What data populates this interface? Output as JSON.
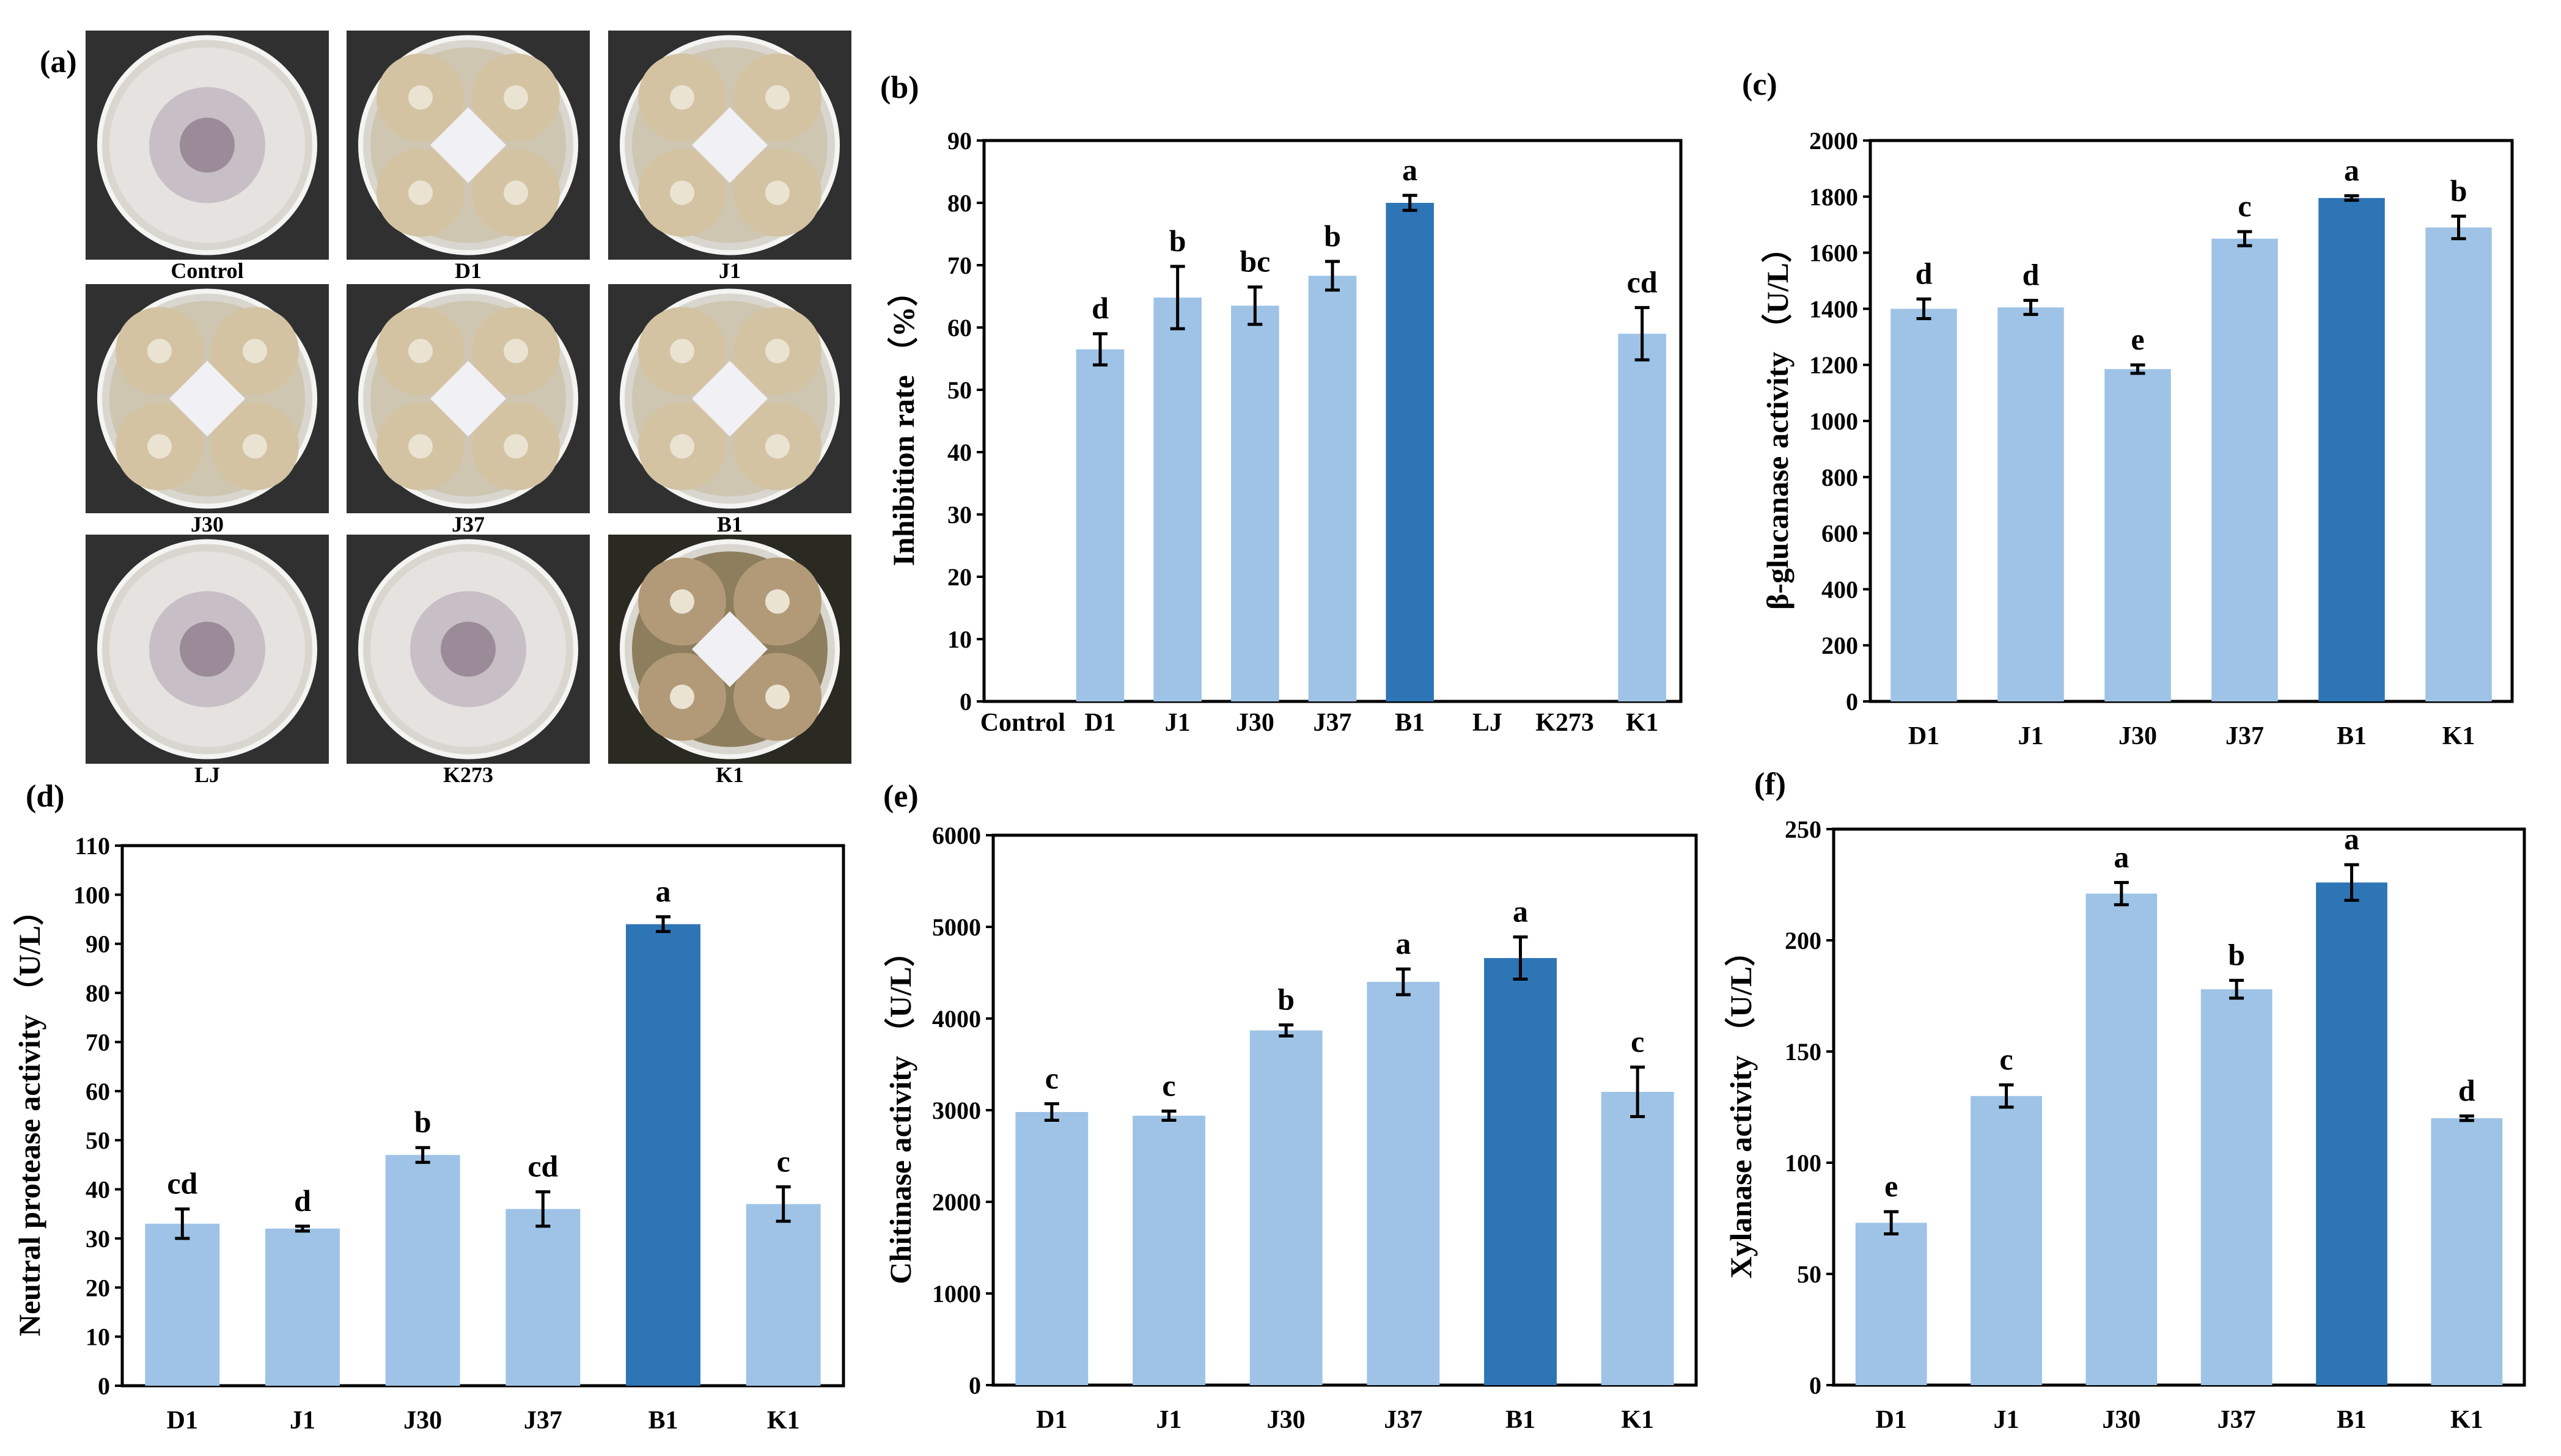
{
  "figure": {
    "colors": {
      "bar_light": "#9ec3e6",
      "bar_dark": "#2e75b6",
      "error": "#000000",
      "frame": "#000000"
    },
    "panel_a": {
      "label": "(a)",
      "plates": [
        {
          "name": "Control",
          "kind": "control"
        },
        {
          "name": "D1",
          "kind": "treated"
        },
        {
          "name": "J1",
          "kind": "treated"
        },
        {
          "name": "J30",
          "kind": "treated"
        },
        {
          "name": "J37",
          "kind": "treated"
        },
        {
          "name": "B1",
          "kind": "treated"
        },
        {
          "name": "LJ",
          "kind": "control"
        },
        {
          "name": "K273",
          "kind": "control"
        },
        {
          "name": "K1",
          "kind": "treated-dark"
        }
      ]
    }
  },
  "chart_data": [
    {
      "id": "b",
      "panel_label": "(b)",
      "type": "bar",
      "title": "",
      "xlabel": "",
      "ylabel": "Inhibition  rate （%）",
      "ylim": [
        0,
        90
      ],
      "yticks": [
        0,
        10,
        20,
        30,
        40,
        50,
        60,
        70,
        80,
        90
      ],
      "categories": [
        "Control",
        "D1",
        "J1",
        "J30",
        "J37",
        "B1",
        "LJ",
        "K273",
        "K1"
      ],
      "values": [
        0,
        56.5,
        64.8,
        63.5,
        68.3,
        80.0,
        0,
        0,
        59.0
      ],
      "errors": [
        0,
        2.5,
        5.0,
        3.0,
        2.3,
        1.2,
        0,
        0,
        4.2
      ],
      "labels": [
        "",
        "d",
        "b",
        "bc",
        "b",
        "a",
        "",
        "",
        "cd"
      ],
      "highlight": "B1"
    },
    {
      "id": "c",
      "panel_label": "(c)",
      "type": "bar",
      "title": "",
      "xlabel": "",
      "ylabel": "β-glucanase activity （U/L）",
      "ylim": [
        0,
        2000
      ],
      "yticks": [
        0,
        200,
        400,
        600,
        800,
        1000,
        1200,
        1400,
        1600,
        1800,
        2000
      ],
      "categories": [
        "D1",
        "J1",
        "J30",
        "J37",
        "B1",
        "K1"
      ],
      "values": [
        1400,
        1405,
        1185,
        1650,
        1795,
        1690
      ],
      "errors": [
        35,
        25,
        15,
        25,
        8,
        40
      ],
      "labels": [
        "d",
        "d",
        "e",
        "c",
        "a",
        "b"
      ],
      "highlight": "B1"
    },
    {
      "id": "d",
      "panel_label": "(d)",
      "type": "bar",
      "title": "",
      "xlabel": "",
      "ylabel": "Neutral protease activity （U/L）",
      "ylim": [
        0,
        110
      ],
      "yticks": [
        0,
        10,
        20,
        30,
        40,
        50,
        60,
        70,
        80,
        90,
        100,
        110
      ],
      "categories": [
        "D1",
        "J1",
        "J30",
        "J37",
        "B1",
        "K1"
      ],
      "values": [
        33,
        32,
        47,
        36,
        94,
        37
      ],
      "errors": [
        3,
        0.5,
        1.5,
        3.5,
        1.5,
        3.5
      ],
      "labels": [
        "cd",
        "d",
        "b",
        "cd",
        "a",
        "c"
      ],
      "highlight": "B1"
    },
    {
      "id": "e",
      "panel_label": "(e)",
      "type": "bar",
      "title": "",
      "xlabel": "",
      "ylabel": "Chitinase activity （U/L）",
      "ylim": [
        0,
        6000
      ],
      "yticks": [
        0,
        1000,
        2000,
        3000,
        4000,
        5000,
        6000
      ],
      "categories": [
        "D1",
        "J1",
        "J30",
        "J37",
        "B1",
        "K1"
      ],
      "values": [
        2980,
        2940,
        3870,
        4400,
        4660,
        3200
      ],
      "errors": [
        90,
        50,
        60,
        140,
        230,
        270
      ],
      "labels": [
        "c",
        "c",
        "b",
        "a",
        "a",
        "c"
      ],
      "highlight": "B1"
    },
    {
      "id": "f",
      "panel_label": "(f)",
      "type": "bar",
      "title": "",
      "xlabel": "",
      "ylabel": "Xylanase activity （U/L）",
      "ylim": [
        0,
        250
      ],
      "yticks": [
        0,
        50,
        100,
        150,
        200,
        250
      ],
      "categories": [
        "D1",
        "J1",
        "J30",
        "J37",
        "B1",
        "K1"
      ],
      "values": [
        73,
        130,
        221,
        178,
        226,
        120
      ],
      "errors": [
        5,
        5,
        5,
        4,
        8,
        1
      ],
      "labels": [
        "e",
        "c",
        "a",
        "b",
        "a",
        "d"
      ],
      "highlight": "B1"
    }
  ]
}
